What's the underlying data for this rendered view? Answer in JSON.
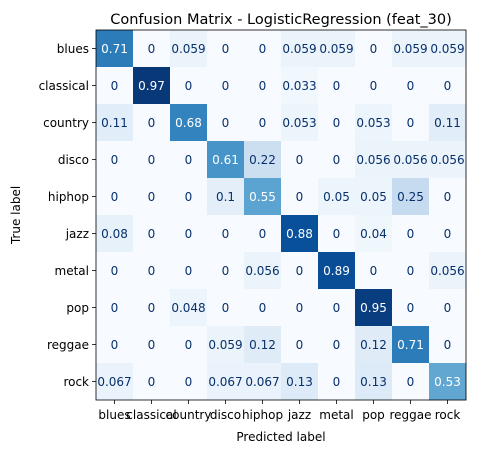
{
  "chart_data": {
    "type": "heatmap",
    "title": "Confusion Matrix - LogisticRegression (feat_30)",
    "xlabel": "Predicted label",
    "ylabel": "True label",
    "colormap": "Blues",
    "value_range": [
      0,
      1
    ],
    "x_categories": [
      "blues",
      "classical",
      "country",
      "disco",
      "hiphop",
      "jazz",
      "metal",
      "pop",
      "reggae",
      "rock"
    ],
    "y_categories": [
      "blues",
      "classical",
      "country",
      "disco",
      "hiphop",
      "jazz",
      "metal",
      "pop",
      "reggae",
      "rock"
    ],
    "cell_labels": [
      [
        "0.71",
        "0",
        "0.059",
        "0",
        "0",
        "0.059",
        "0.059",
        "0",
        "0.059",
        "0.059"
      ],
      [
        "0",
        "0.97",
        "0",
        "0",
        "0",
        "0.033",
        "0",
        "0",
        "0",
        "0"
      ],
      [
        "0.11",
        "0",
        "0.68",
        "0",
        "0",
        "0.053",
        "0",
        "0.053",
        "0",
        "0.11"
      ],
      [
        "0",
        "0",
        "0",
        "0.61",
        "0.22",
        "0",
        "0",
        "0.056",
        "0.056",
        "0.056"
      ],
      [
        "0",
        "0",
        "0",
        "0.1",
        "0.55",
        "0",
        "0.05",
        "0.05",
        "0.25",
        "0"
      ],
      [
        "0.08",
        "0",
        "0",
        "0",
        "0",
        "0.88",
        "0",
        "0.04",
        "0",
        "0"
      ],
      [
        "0",
        "0",
        "0",
        "0",
        "0.056",
        "0",
        "0.89",
        "0",
        "0",
        "0.056"
      ],
      [
        "0",
        "0",
        "0.048",
        "0",
        "0",
        "0",
        "0",
        "0.95",
        "0",
        "0"
      ],
      [
        "0",
        "0",
        "0",
        "0.059",
        "0.12",
        "0",
        "0",
        "0.12",
        "0.71",
        "0"
      ],
      [
        "0.067",
        "0",
        "0",
        "0.067",
        "0.067",
        "0.13",
        "0",
        "0.13",
        "0",
        "0.53"
      ]
    ]
  }
}
